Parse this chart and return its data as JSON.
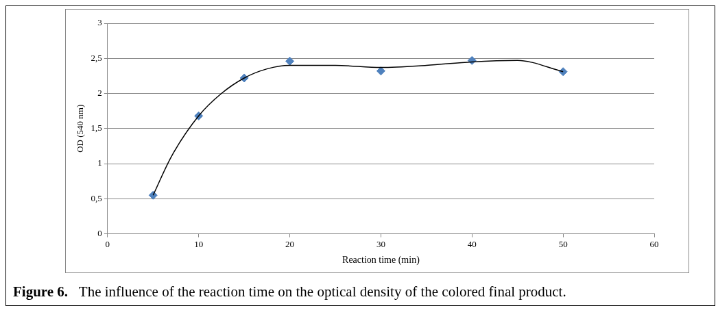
{
  "chart_data": {
    "type": "scatter",
    "xlabel": "Reaction time (min)",
    "ylabel": "OD (540 nm)",
    "annotations": [
      "Figure 6.",
      "The influence of the reaction time on the optical density of the colored final product."
    ],
    "xlim": [
      0,
      60
    ],
    "xticks": [
      0,
      10,
      20,
      30,
      40,
      50,
      60
    ],
    "ylim": [
      0,
      3
    ],
    "yticks": [
      0,
      {
        "value": 0.5,
        "label": "0,5"
      },
      1,
      {
        "value": 1.5,
        "label": "1,5"
      },
      2,
      {
        "value": 2.5,
        "label": "2,5"
      },
      3
    ],
    "grid": "y",
    "legend": false,
    "marker": "diamond",
    "series": [
      {
        "type": "scatter",
        "color": "#4f81bd",
        "x": [
          5,
          10,
          15,
          20,
          30,
          40,
          50
        ],
        "values": [
          0.55,
          1.68,
          2.22,
          2.46,
          2.32,
          2.47,
          2.31
        ]
      },
      {
        "type": "line",
        "color": "#000000",
        "marker": "none",
        "x": [
          5,
          7,
          10,
          12.5,
          15,
          17.5,
          20,
          25,
          30,
          35,
          40,
          45,
          50
        ],
        "values": [
          0.55,
          1.1,
          1.68,
          2.0,
          2.22,
          2.35,
          2.4,
          2.4,
          2.37,
          2.4,
          2.45,
          2.47,
          2.31
        ]
      }
    ]
  }
}
